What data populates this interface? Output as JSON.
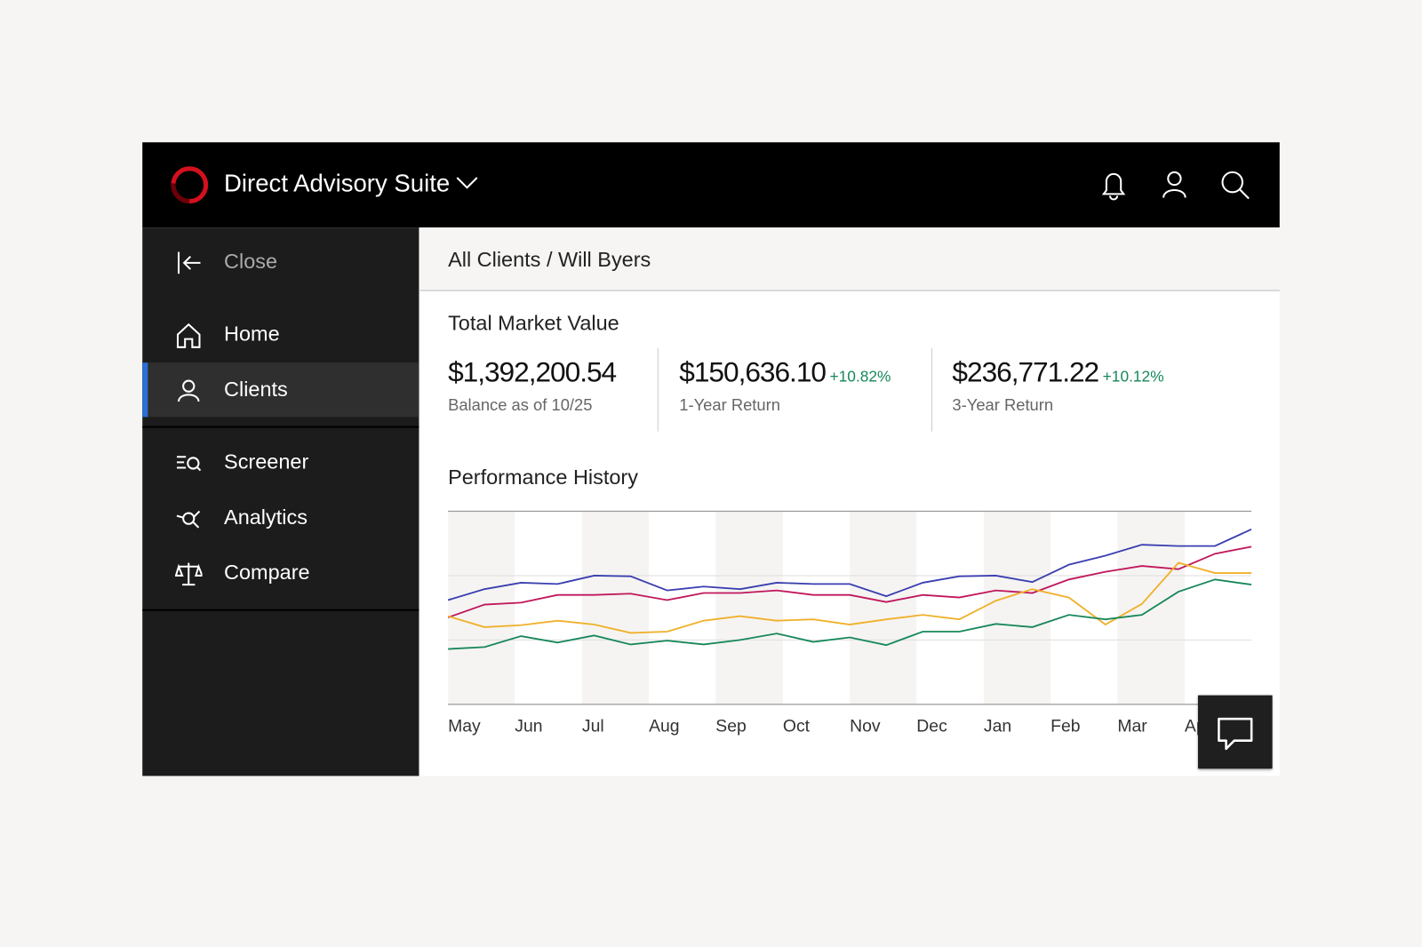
{
  "header": {
    "title": "Direct Advisory Suite"
  },
  "nav": {
    "close": "Close",
    "items": [
      "Home",
      "Clients",
      "Screener",
      "Analytics",
      "Compare"
    ]
  },
  "breadcrumb": "All Clients / Will Byers",
  "summary": {
    "title": "Total Market Value",
    "metrics": [
      {
        "value": "$1,392,200.54",
        "label": "Balance as of 10/25"
      },
      {
        "value": "$150,636.10",
        "change": "+10.82%",
        "label": "1-Year Return"
      },
      {
        "value": "$236,771.22",
        "change": "+10.12%",
        "label": "3-Year Return"
      }
    ]
  },
  "chart_data": {
    "type": "line",
    "title": "Performance History",
    "x": [
      0,
      1,
      2,
      3,
      4,
      5,
      6,
      7,
      8,
      9,
      10,
      11,
      12,
      13,
      14,
      15,
      16,
      17,
      18,
      19,
      20,
      21,
      22
    ],
    "xlim": [
      0,
      22
    ],
    "xticks": [
      {
        "value": 0,
        "label": "May"
      },
      {
        "value": 1.83,
        "label": "Jun"
      },
      {
        "value": 3.67,
        "label": "Jul"
      },
      {
        "value": 5.5,
        "label": "Aug"
      },
      {
        "value": 7.33,
        "label": "Sep"
      },
      {
        "value": 9.17,
        "label": "Oct"
      },
      {
        "value": 11,
        "label": "Nov"
      },
      {
        "value": 12.83,
        "label": "Dec"
      },
      {
        "value": 14.67,
        "label": "Jan"
      },
      {
        "value": 16.5,
        "label": "Feb"
      },
      {
        "value": 18.33,
        "label": "Mar"
      },
      {
        "value": 20.17,
        "label": "Apr"
      }
    ],
    "ylim": [
      0,
      3
    ],
    "yticks": [
      0,
      1,
      2,
      3
    ],
    "grid": true,
    "series": [
      {
        "color": "#3a3fb0",
        "values": [
          1.62,
          1.79,
          1.89,
          1.87,
          2.0,
          1.99,
          1.77,
          1.83,
          1.79,
          1.89,
          1.87,
          1.87,
          1.68,
          1.89,
          1.99,
          2.0,
          1.9,
          2.17,
          2.31,
          2.48,
          2.46,
          2.46,
          2.72
        ]
      },
      {
        "color": "#c0175c",
        "values": [
          1.35,
          1.55,
          1.58,
          1.7,
          1.7,
          1.72,
          1.62,
          1.73,
          1.73,
          1.77,
          1.7,
          1.7,
          1.59,
          1.7,
          1.66,
          1.77,
          1.73,
          1.94,
          2.06,
          2.15,
          2.1,
          2.34,
          2.45
        ]
      },
      {
        "color": "#f0b02a",
        "values": [
          1.37,
          1.2,
          1.23,
          1.3,
          1.24,
          1.11,
          1.13,
          1.3,
          1.37,
          1.3,
          1.32,
          1.24,
          1.32,
          1.39,
          1.32,
          1.61,
          1.79,
          1.66,
          1.24,
          1.56,
          2.2,
          2.04,
          2.04
        ]
      },
      {
        "color": "#17875a",
        "values": [
          0.86,
          0.89,
          1.06,
          0.96,
          1.07,
          0.93,
          0.99,
          0.93,
          1.0,
          1.1,
          0.97,
          1.04,
          0.92,
          1.13,
          1.13,
          1.25,
          1.2,
          1.39,
          1.32,
          1.39,
          1.75,
          1.94,
          1.86
        ]
      }
    ]
  }
}
